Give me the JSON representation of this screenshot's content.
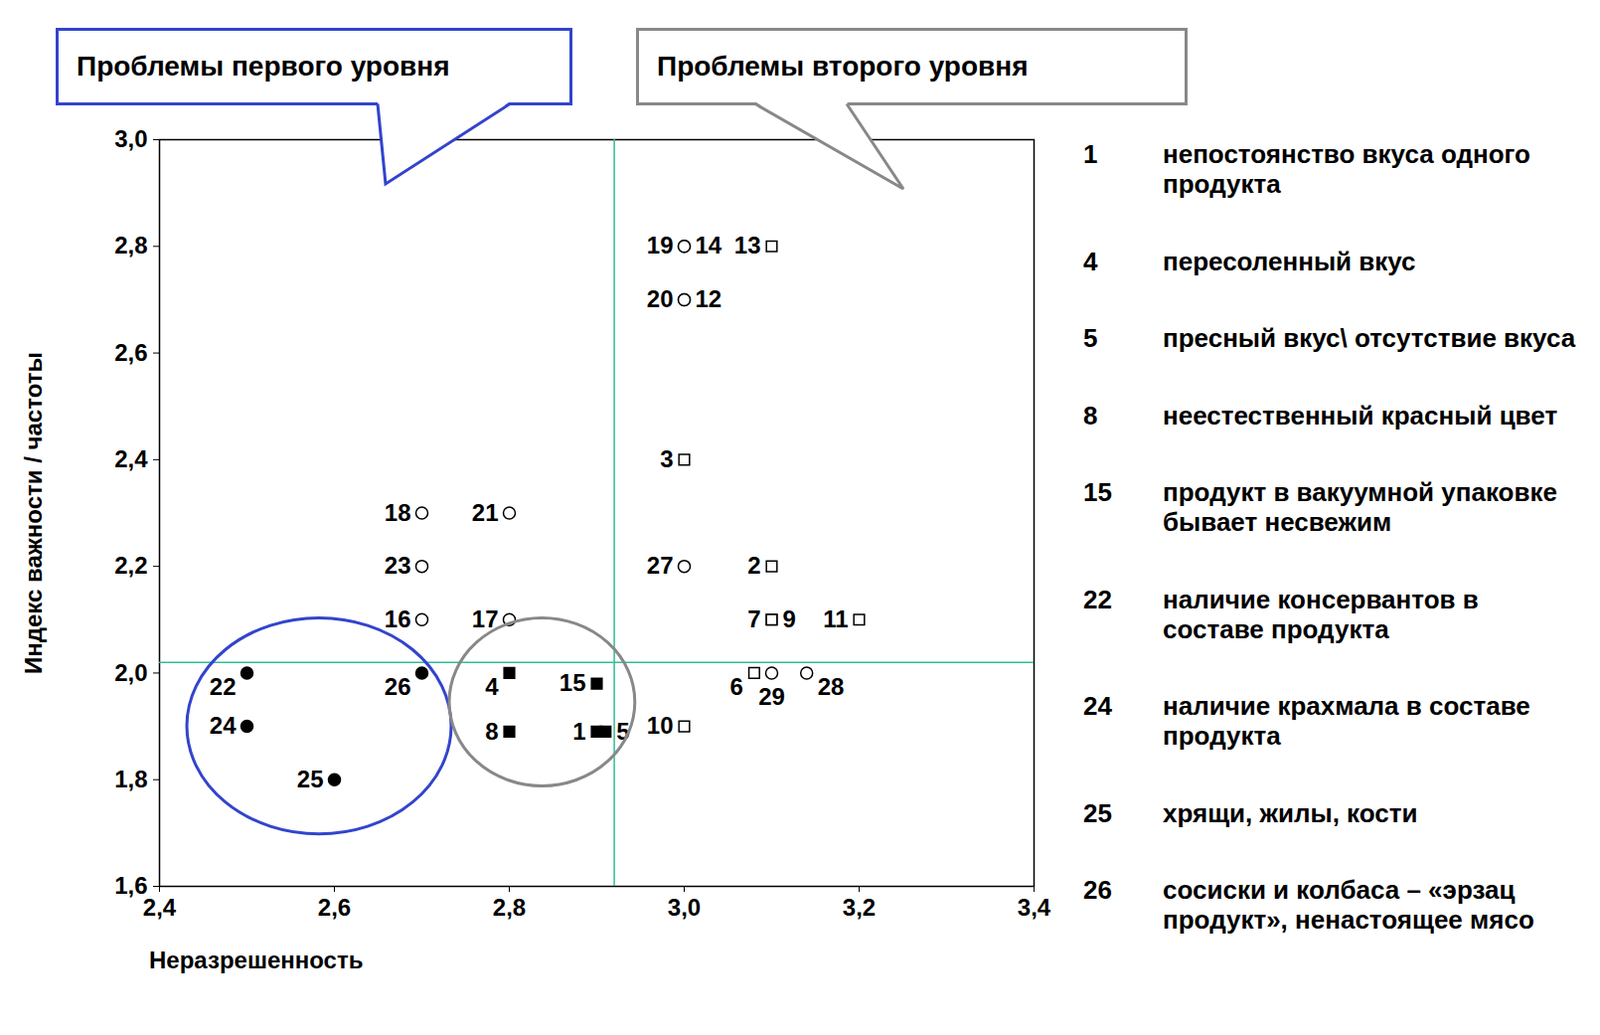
{
  "chart_data": {
    "type": "scatter",
    "xlabel": "Неразрешенность",
    "ylabel": "Индекс важности / частоты",
    "xlim": [
      2.4,
      3.4
    ],
    "ylim": [
      1.6,
      3.0
    ],
    "xticks": [
      {
        "value": 2.4,
        "label": "2,4"
      },
      {
        "value": 2.6,
        "label": "2,6"
      },
      {
        "value": 2.8,
        "label": "2,8"
      },
      {
        "value": 3.0,
        "label": "3,0"
      },
      {
        "value": 3.2,
        "label": "3,2"
      },
      {
        "value": 3.4,
        "label": "3,4"
      }
    ],
    "yticks": [
      {
        "value": 1.6,
        "label": "1,6"
      },
      {
        "value": 1.8,
        "label": "1,8"
      },
      {
        "value": 2.0,
        "label": "2,0"
      },
      {
        "value": 2.2,
        "label": "2,2"
      },
      {
        "value": 2.4,
        "label": "2,4"
      },
      {
        "value": 2.6,
        "label": "2,6"
      },
      {
        "value": 2.8,
        "label": "2,8"
      },
      {
        "value": 3.0,
        "label": "3,0"
      }
    ],
    "grid": false,
    "thresholds": {
      "x": 2.92,
      "y": 2.02
    },
    "series": [
      {
        "marker": "filled-circle",
        "color": "#000000",
        "callout": {
          "text": "Проблемы первого уровня",
          "color": "#3344cc"
        },
        "labels": [
          "22",
          "24",
          "25",
          "26"
        ],
        "x": [
          2.5,
          2.5,
          2.6,
          2.7
        ],
        "y": [
          2.0,
          1.9,
          1.8,
          2.0
        ]
      },
      {
        "marker": "filled-square",
        "color": "#000000",
        "callout": {
          "text": "Проблемы второго уровня",
          "color": "#888888"
        },
        "labels": [
          "4",
          "8",
          "15",
          "1",
          "5"
        ],
        "x": [
          2.8,
          2.8,
          2.9,
          2.9,
          2.91
        ],
        "y": [
          2.0,
          1.89,
          1.98,
          1.89,
          1.89
        ]
      },
      {
        "marker": "circle",
        "color": "#000000",
        "labels": [
          "19",
          "14",
          "20",
          "12",
          "27",
          "18",
          "23",
          "16",
          "21",
          "17",
          "29",
          "28"
        ],
        "x": [
          3.0,
          3.0,
          3.0,
          3.0,
          3.0,
          2.7,
          2.7,
          2.7,
          2.8,
          2.8,
          3.1,
          3.14
        ],
        "y": [
          2.8,
          2.8,
          2.7,
          2.7,
          2.2,
          2.3,
          2.2,
          2.1,
          2.3,
          2.1,
          2.0,
          2.0
        ]
      },
      {
        "marker": "square",
        "color": "#000000",
        "labels": [
          "13",
          "3",
          "2",
          "7",
          "9",
          "11",
          "6",
          "10"
        ],
        "x": [
          3.1,
          3.0,
          3.1,
          3.1,
          3.1,
          3.2,
          3.08,
          3.0
        ],
        "y": [
          2.8,
          2.4,
          2.2,
          2.1,
          2.1,
          2.1,
          2.0,
          1.9
        ]
      }
    ],
    "item_descriptions": [
      {
        "label": "1",
        "text": "непостоянство вкуса одного продукта"
      },
      {
        "label": "4",
        "text": "пересоленный вкус"
      },
      {
        "label": "5",
        "text": "пресный вкус\\ отсутствие вкуса"
      },
      {
        "label": "8",
        "text": "неестественный красный цвет"
      },
      {
        "label": "15",
        "text": "продукт в вакуумной упаковке бывает несвежим"
      },
      {
        "label": "22",
        "text": "наличие консервантов в составе продукта"
      },
      {
        "label": "24",
        "text": "наличие крахмала в составе продукта"
      },
      {
        "label": "25",
        "text": "хрящи, жилы, кости"
      },
      {
        "label": "26",
        "text": "сосиски и колбаса – «эрзац продукт», ненастоящее мясо"
      }
    ]
  }
}
